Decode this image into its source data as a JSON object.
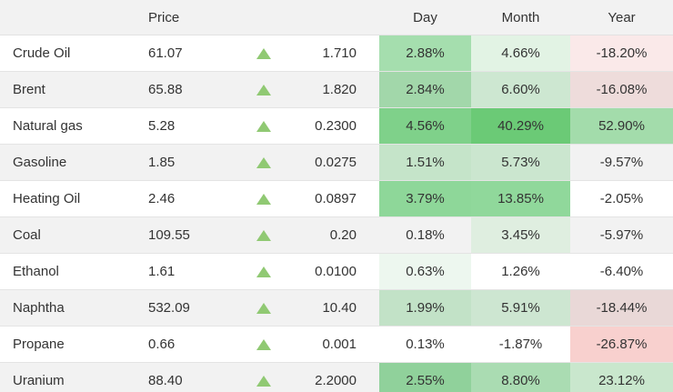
{
  "table": {
    "headers": {
      "name": "",
      "price": "Price",
      "day": "Day",
      "month": "Month",
      "year": "Year"
    },
    "rows": [
      {
        "name": "Crude Oil",
        "price": "61.07",
        "direction": "up",
        "change": "1.710",
        "day": "2.88%",
        "day_bg": "#a5deae",
        "month": "4.66%",
        "month_bg": "#e2f3e4",
        "year": "-18.20%",
        "year_bg": "#fae9e9"
      },
      {
        "name": "Brent",
        "price": "65.88",
        "direction": "up",
        "change": "1.820",
        "day": "2.84%",
        "day_bg": "#a2d7aa",
        "month": "6.60%",
        "month_bg": "#cde7d1",
        "year": "-16.08%",
        "year_bg": "#eedcdb"
      },
      {
        "name": "Natural gas",
        "price": "5.28",
        "direction": "up",
        "change": "0.2300",
        "day": "4.56%",
        "day_bg": "#7fd18a",
        "month": "40.29%",
        "month_bg": "#6bca76",
        "year": "52.90%",
        "year_bg": "#a3dcab"
      },
      {
        "name": "Gasoline",
        "price": "1.85",
        "direction": "up",
        "change": "0.0275",
        "day": "1.51%",
        "day_bg": "#c5e4c9",
        "month": "5.73%",
        "month_bg": "#cbe6cf",
        "year": "-9.57%",
        "year_bg": "#f2f2f2"
      },
      {
        "name": "Heating Oil",
        "price": "2.46",
        "direction": "up",
        "change": "0.0897",
        "day": "3.79%",
        "day_bg": "#8ed799",
        "month": "13.85%",
        "month_bg": "#90d89b",
        "year": "-2.05%",
        "year_bg": "#ffffff"
      },
      {
        "name": "Coal",
        "price": "109.55",
        "direction": "up",
        "change": "0.20",
        "day": "0.18%",
        "day_bg": "#f2f2f2",
        "month": "3.45%",
        "month_bg": "#dfeee0",
        "year": "-5.97%",
        "year_bg": "#f2f2f2"
      },
      {
        "name": "Ethanol",
        "price": "1.61",
        "direction": "up",
        "change": "0.0100",
        "day": "0.63%",
        "day_bg": "#edf7ef",
        "month": "1.26%",
        "month_bg": "#ffffff",
        "year": "-6.40%",
        "year_bg": "#ffffff"
      },
      {
        "name": "Naphtha",
        "price": "532.09",
        "direction": "up",
        "change": "10.40",
        "day": "1.99%",
        "day_bg": "#c2e2c7",
        "month": "5.91%",
        "month_bg": "#cde6d1",
        "year": "-18.44%",
        "year_bg": "#e9d8d7"
      },
      {
        "name": "Propane",
        "price": "0.66",
        "direction": "up",
        "change": "0.001",
        "day": "0.13%",
        "day_bg": "#ffffff",
        "month": "-1.87%",
        "month_bg": "#ffffff",
        "year": "-26.87%",
        "year_bg": "#f8d0ce"
      },
      {
        "name": "Uranium",
        "price": "88.40",
        "direction": "up",
        "change": "2.2000",
        "day": "2.55%",
        "day_bg": "#90d19b",
        "month": "8.80%",
        "month_bg": "#aadcb2",
        "year": "23.12%",
        "year_bg": "#c9e7cd"
      }
    ]
  },
  "colors": {
    "up_arrow": "#90c973",
    "header_bg": "#f2f2f2",
    "row_stripe": "#f2f2f2",
    "text": "#333333",
    "row_border": "#e4e4e4"
  }
}
